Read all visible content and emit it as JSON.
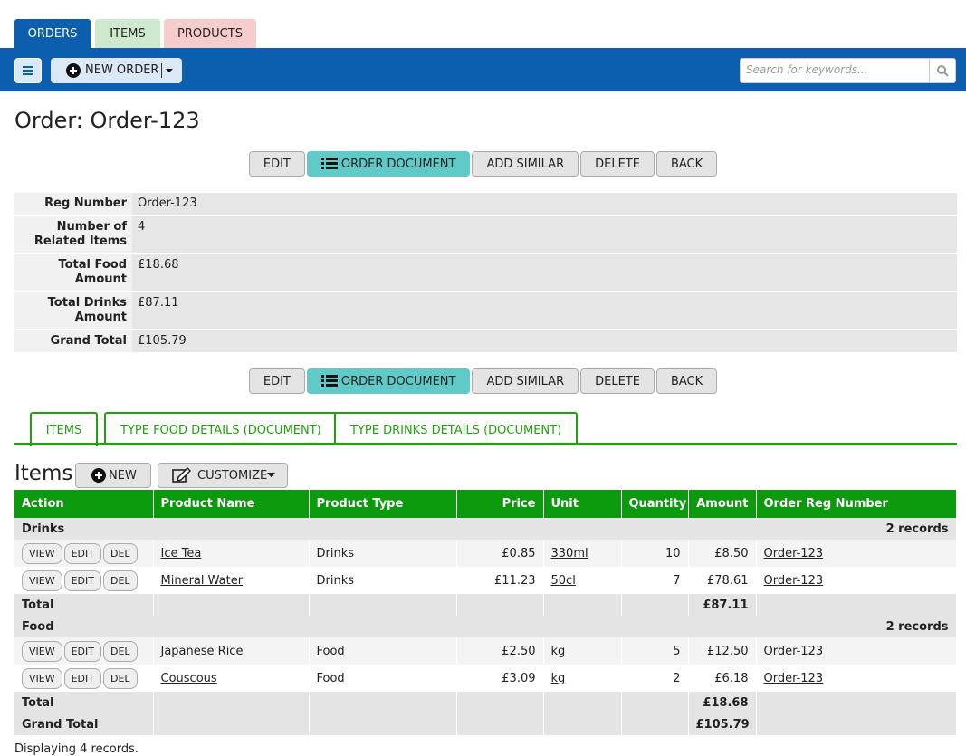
{
  "tabs": [
    "ORDERS",
    "ITEMS",
    "PRODUCTS"
  ],
  "toolbar": {
    "new_order": "NEW ORDER",
    "search_placeholder": "Search for keywords..."
  },
  "page_title": "Order: Order-123",
  "actions": [
    "EDIT",
    "ORDER DOCUMENT",
    "ADD SIMILAR",
    "DELETE",
    "BACK"
  ],
  "details": [
    {
      "label": "Reg Number",
      "value": "Order-123"
    },
    {
      "label": "Number of Related Items",
      "value": "4"
    },
    {
      "label": "Total Food Amount",
      "value": "£18.68"
    },
    {
      "label": "Total Drinks Amount",
      "value": "£87.11"
    },
    {
      "label": "Grand Total",
      "value": "£105.79"
    }
  ],
  "sub_tabs": [
    "ITEMS",
    "TYPE FOOD DETAILS (DOCUMENT)",
    "TYPE DRINKS DETAILS (DOCUMENT)"
  ],
  "items": {
    "title": "Items",
    "new": "NEW",
    "customize": "CUSTOMIZE",
    "columns": [
      "Action",
      "Product Name",
      "Product Type",
      "Price",
      "Unit",
      "Quantity",
      "Amount",
      "Order Reg Number"
    ],
    "row_actions": [
      "VIEW",
      "EDIT",
      "DEL"
    ],
    "groups": [
      {
        "name": "Drinks",
        "count": "2 records",
        "total_label": "Total",
        "total": "£87.11",
        "rows": [
          {
            "product": "Ice Tea",
            "type": "Drinks",
            "price": "£0.85",
            "unit": "330ml",
            "quantity": 10,
            "amount": "£8.50",
            "order": "Order-123"
          },
          {
            "product": "Mineral Water",
            "type": "Drinks",
            "price": "£11.23",
            "unit": "50cl",
            "quantity": 7,
            "amount": "£78.61",
            "order": "Order-123"
          }
        ]
      },
      {
        "name": "Food",
        "count": "2 records",
        "total_label": "Total",
        "total": "£18.68",
        "rows": [
          {
            "product": "Japanese Rice",
            "type": "Food",
            "price": "£2.50",
            "unit": "kg",
            "quantity": 5,
            "amount": "£12.50",
            "order": "Order-123"
          },
          {
            "product": "Couscous",
            "type": "Food",
            "price": "£3.09",
            "unit": "kg",
            "quantity": 2,
            "amount": "£6.18",
            "order": "Order-123"
          }
        ]
      }
    ],
    "grand_total_label": "Grand Total",
    "grand_total": "£105.79",
    "footer": "Displaying 4 records."
  }
}
